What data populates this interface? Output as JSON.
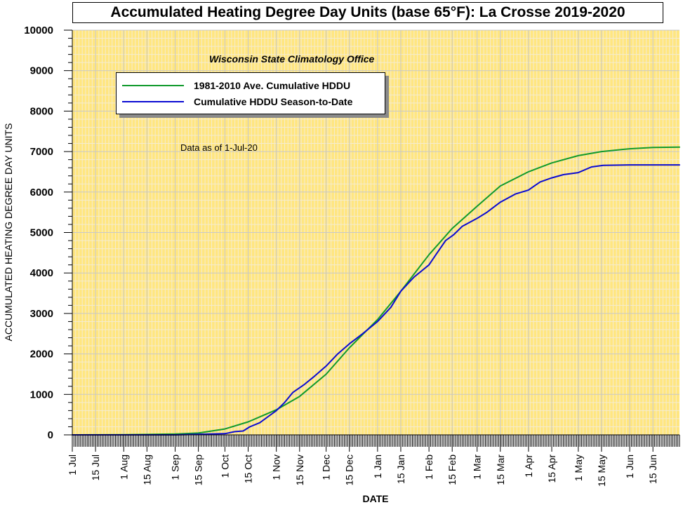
{
  "title": "Accumulated Heating Degree Day Units (base 65°F): La Crosse 2019-2020",
  "subtitle": "Wisconsin State Climatology Office",
  "note": "Data as of 1-Jul-20",
  "colors": {
    "plot_background": "#ffe680",
    "grid_major": "#c8c8c8",
    "grid_minor": "#f5ecd0",
    "average_series": "#109a2c",
    "season_series": "#0a0ad2"
  },
  "chart_data": {
    "type": "line",
    "title": "Accumulated Heating Degree Day Units (base 65°F): La Crosse 2019-2020",
    "xlabel": "DATE",
    "ylabel": "ACCUMULATED HEATING DEGREE DAY UNITS",
    "ylim": [
      0,
      10000
    ],
    "xlim_days": [
      0,
      366
    ],
    "y_ticks": [
      0,
      1000,
      2000,
      3000,
      4000,
      5000,
      6000,
      7000,
      8000,
      9000,
      10000
    ],
    "x_ticks": [
      {
        "label": "1 Jul",
        "day": 0
      },
      {
        "label": "15 Jul",
        "day": 14
      },
      {
        "label": "1 Aug",
        "day": 31
      },
      {
        "label": "15 Aug",
        "day": 45
      },
      {
        "label": "1 Sep",
        "day": 62
      },
      {
        "label": "15 Sep",
        "day": 76
      },
      {
        "label": "1 Oct",
        "day": 92
      },
      {
        "label": "15 Oct",
        "day": 106
      },
      {
        "label": "1 Nov",
        "day": 123
      },
      {
        "label": "15 Nov",
        "day": 137
      },
      {
        "label": "1 Dec",
        "day": 153
      },
      {
        "label": "15 Dec",
        "day": 167
      },
      {
        "label": "1 Jan",
        "day": 184
      },
      {
        "label": "15 Jan",
        "day": 198
      },
      {
        "label": "1 Feb",
        "day": 215
      },
      {
        "label": "15 Feb",
        "day": 229
      },
      {
        "label": "1 Mar",
        "day": 244
      },
      {
        "label": "15 Mar",
        "day": 258
      },
      {
        "label": "1 Apr",
        "day": 275
      },
      {
        "label": "15 Apr",
        "day": 289
      },
      {
        "label": "1 May",
        "day": 305
      },
      {
        "label": "15 May",
        "day": 319
      },
      {
        "label": "1 Jun",
        "day": 336
      },
      {
        "label": "15 Jun",
        "day": 350
      }
    ],
    "legend_position": "upper-left",
    "grid": true,
    "series": [
      {
        "name": "1981-2010 Ave. Cumulative HDDU",
        "color": "#109a2c",
        "points": [
          [
            0,
            0
          ],
          [
            14,
            2
          ],
          [
            31,
            5
          ],
          [
            45,
            10
          ],
          [
            62,
            20
          ],
          [
            76,
            45
          ],
          [
            92,
            145
          ],
          [
            106,
            320
          ],
          [
            123,
            620
          ],
          [
            137,
            950
          ],
          [
            153,
            1500
          ],
          [
            167,
            2150
          ],
          [
            184,
            2850
          ],
          [
            198,
            3550
          ],
          [
            215,
            4450
          ],
          [
            229,
            5100
          ],
          [
            244,
            5650
          ],
          [
            258,
            6150
          ],
          [
            275,
            6500
          ],
          [
            289,
            6720
          ],
          [
            305,
            6900
          ],
          [
            319,
            7000
          ],
          [
            336,
            7070
          ],
          [
            350,
            7100
          ],
          [
            366,
            7110
          ]
        ]
      },
      {
        "name": "Cumulative HDDU Season-to-Date",
        "color": "#0a0ad2",
        "points": [
          [
            0,
            0
          ],
          [
            62,
            0
          ],
          [
            92,
            30
          ],
          [
            98,
            80
          ],
          [
            103,
            95
          ],
          [
            107,
            200
          ],
          [
            113,
            300
          ],
          [
            118,
            450
          ],
          [
            123,
            600
          ],
          [
            128,
            800
          ],
          [
            133,
            1050
          ],
          [
            140,
            1250
          ],
          [
            146,
            1450
          ],
          [
            153,
            1700
          ],
          [
            160,
            2000
          ],
          [
            167,
            2250
          ],
          [
            175,
            2500
          ],
          [
            184,
            2800
          ],
          [
            192,
            3150
          ],
          [
            198,
            3550
          ],
          [
            206,
            3900
          ],
          [
            215,
            4200
          ],
          [
            220,
            4500
          ],
          [
            225,
            4800
          ],
          [
            230,
            4950
          ],
          [
            235,
            5150
          ],
          [
            244,
            5350
          ],
          [
            250,
            5500
          ],
          [
            258,
            5750
          ],
          [
            267,
            5950
          ],
          [
            275,
            6050
          ],
          [
            282,
            6250
          ],
          [
            289,
            6350
          ],
          [
            296,
            6430
          ],
          [
            305,
            6480
          ],
          [
            313,
            6620
          ],
          [
            320,
            6660
          ],
          [
            336,
            6670
          ],
          [
            366,
            6670
          ]
        ]
      }
    ]
  }
}
